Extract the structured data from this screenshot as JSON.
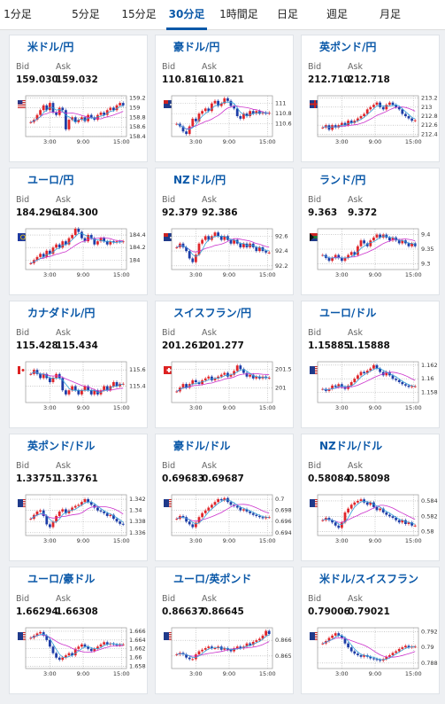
{
  "tabs": [
    {
      "label": "1分足",
      "active": false
    },
    {
      "label": "5分足",
      "active": false
    },
    {
      "label": "15分足",
      "active": false
    },
    {
      "label": "30分足",
      "active": true
    },
    {
      "label": "1時間足",
      "active": false
    },
    {
      "label": "日足",
      "active": false
    },
    {
      "label": "週足",
      "active": false
    },
    {
      "label": "月足",
      "active": false
    }
  ],
  "labels": {
    "bid": "Bid",
    "ask": "Ask"
  },
  "x_ticks": [
    "3:00",
    "9:00",
    "15:00"
  ],
  "colors": {
    "up": "#e0262b",
    "down": "#1e3ea8",
    "ma": "#cc33cc",
    "ma_short": "#33a0d8",
    "link": "#0a58a8"
  },
  "pairs": [
    {
      "name": "米ドル/円",
      "flag": "flag-us",
      "bid": "159.030",
      "ask": "159.032",
      "chart_data": {
        "type": "candlestick",
        "y_ticks": [
          "159.2",
          "159",
          "158.8",
          "158.6",
          "158.4"
        ],
        "ylim": [
          158.4,
          159.25
        ],
        "closes": [
          158.7,
          158.75,
          158.85,
          158.95,
          159.05,
          158.95,
          159.1,
          158.9,
          158.85,
          159.0,
          158.95,
          158.55,
          158.75,
          158.8,
          158.7,
          158.75,
          158.8,
          158.72,
          158.85,
          158.8,
          158.75,
          158.85,
          158.9,
          158.85,
          158.95,
          159.0,
          158.95,
          159.05,
          159.1,
          159.05
        ]
      }
    },
    {
      "name": "豪ドル/円",
      "flag": "flag-au",
      "bid": "110.816",
      "ask": "110.821",
      "chart_data": {
        "type": "candlestick",
        "y_ticks": [
          "111",
          "110.8",
          "110.6"
        ],
        "ylim": [
          110.35,
          111.15
        ],
        "closes": [
          110.6,
          110.55,
          110.45,
          110.4,
          110.55,
          110.7,
          110.65,
          110.8,
          110.85,
          110.9,
          110.85,
          111.0,
          111.05,
          110.95,
          111.0,
          111.1,
          111.05,
          110.95,
          110.9,
          110.75,
          110.7,
          110.8,
          110.75,
          110.85,
          110.8,
          110.85,
          110.8,
          110.82,
          110.8,
          110.82
        ]
      }
    },
    {
      "name": "英ポンド/円",
      "flag": "flag-gb",
      "bid": "212.710",
      "ask": "212.718",
      "chart_data": {
        "type": "candlestick",
        "y_ticks": [
          "213.2",
          "213",
          "212.8",
          "212.6",
          "212.4"
        ],
        "ylim": [
          212.35,
          213.25
        ],
        "closes": [
          212.55,
          212.6,
          212.5,
          212.6,
          212.55,
          212.6,
          212.65,
          212.6,
          212.7,
          212.65,
          212.7,
          212.75,
          212.8,
          212.85,
          212.95,
          213.0,
          213.05,
          213.1,
          213.0,
          212.95,
          213.05,
          213.1,
          213.05,
          213.0,
          212.95,
          212.85,
          212.8,
          212.75,
          212.7,
          212.71
        ]
      }
    },
    {
      "name": "ユーロ/円",
      "flag": "flag-eu",
      "bid": "184.296",
      "ask": "184.300",
      "chart_data": {
        "type": "candlestick",
        "y_ticks": [
          "184.4",
          "184.2",
          "184"
        ],
        "ylim": [
          183.85,
          184.5
        ],
        "closes": [
          183.95,
          184.0,
          184.05,
          184.1,
          184.05,
          184.15,
          184.1,
          184.2,
          184.25,
          184.2,
          184.3,
          184.25,
          184.35,
          184.4,
          184.5,
          184.45,
          184.35,
          184.3,
          184.4,
          184.35,
          184.25,
          184.3,
          184.35,
          184.3,
          184.25,
          184.3,
          184.28,
          184.3,
          184.29,
          184.3
        ]
      }
    },
    {
      "name": "NZドル/円",
      "flag": "flag-nz",
      "bid": "92.379",
      "ask": "92.386",
      "chart_data": {
        "type": "candlestick",
        "y_ticks": [
          "92.6",
          "92.4",
          "92.2"
        ],
        "ylim": [
          92.15,
          92.7
        ],
        "closes": [
          92.45,
          92.5,
          92.45,
          92.4,
          92.3,
          92.25,
          92.35,
          92.5,
          92.55,
          92.6,
          92.55,
          92.6,
          92.65,
          92.6,
          92.55,
          92.6,
          92.55,
          92.5,
          92.55,
          92.5,
          92.45,
          92.5,
          92.45,
          92.5,
          92.45,
          92.4,
          92.45,
          92.4,
          92.38,
          92.38
        ]
      }
    },
    {
      "name": "ランド/円",
      "flag": "flag-za",
      "bid": "9.363",
      "ask": "9.372",
      "chart_data": {
        "type": "candlestick",
        "y_ticks": [
          "9.4",
          "9.35",
          "9.3"
        ],
        "ylim": [
          9.28,
          9.42
        ],
        "closes": [
          9.33,
          9.32,
          9.31,
          9.32,
          9.33,
          9.32,
          9.31,
          9.32,
          9.33,
          9.34,
          9.33,
          9.36,
          9.38,
          9.37,
          9.36,
          9.38,
          9.39,
          9.4,
          9.39,
          9.4,
          9.39,
          9.38,
          9.39,
          9.38,
          9.37,
          9.38,
          9.37,
          9.36,
          9.37,
          9.36
        ]
      }
    },
    {
      "name": "カナダドル/円",
      "flag": "flag-ca",
      "bid": "115.428",
      "ask": "115.434",
      "chart_data": {
        "type": "candlestick",
        "y_ticks": [
          "115.6",
          "115.4"
        ],
        "ylim": [
          115.2,
          115.7
        ],
        "closes": [
          115.55,
          115.6,
          115.55,
          115.5,
          115.55,
          115.5,
          115.45,
          115.5,
          115.55,
          115.5,
          115.35,
          115.3,
          115.35,
          115.4,
          115.35,
          115.3,
          115.35,
          115.4,
          115.35,
          115.3,
          115.35,
          115.3,
          115.35,
          115.4,
          115.35,
          115.4,
          115.45,
          115.4,
          115.43,
          115.43
        ]
      }
    },
    {
      "name": "スイスフラン/円",
      "flag": "flag-ch",
      "bid": "201.261",
      "ask": "201.277",
      "chart_data": {
        "type": "candlestick",
        "y_ticks": [
          "201.5",
          "201"
        ],
        "ylim": [
          200.6,
          201.7
        ],
        "closes": [
          200.9,
          201.0,
          201.1,
          201.0,
          201.1,
          201.2,
          201.15,
          201.1,
          201.2,
          201.25,
          201.3,
          201.2,
          201.25,
          201.3,
          201.35,
          201.4,
          201.3,
          201.35,
          201.45,
          201.6,
          201.5,
          201.4,
          201.3,
          201.35,
          201.25,
          201.3,
          201.25,
          201.3,
          201.26,
          201.27
        ]
      }
    },
    {
      "name": "ユーロ/ドル",
      "flag": "flag-eu-us",
      "bid": "1.15885",
      "ask": "1.15888",
      "chart_data": {
        "type": "candlestick",
        "y_ticks": [
          "1.162",
          "1.16",
          "1.158"
        ],
        "ylim": [
          1.1565,
          1.1625
        ],
        "closes": [
          1.1585,
          1.1582,
          1.1585,
          1.159,
          1.1588,
          1.1592,
          1.1588,
          1.1585,
          1.159,
          1.1595,
          1.16,
          1.1605,
          1.161,
          1.1608,
          1.1612,
          1.1615,
          1.162,
          1.1615,
          1.161,
          1.1605,
          1.161,
          1.1605,
          1.16,
          1.1598,
          1.1595,
          1.1592,
          1.159,
          1.1588,
          1.1589,
          1.1589
        ]
      }
    },
    {
      "name": "英ポンド/ドル",
      "flag": "flag-gb-us",
      "bid": "1.33751",
      "ask": "1.33761",
      "chart_data": {
        "type": "candlestick",
        "y_ticks": [
          "1.342",
          "1.34",
          "1.338",
          "1.336"
        ],
        "ylim": [
          1.3355,
          1.3428
        ],
        "closes": [
          1.3385,
          1.3392,
          1.3398,
          1.34,
          1.339,
          1.3375,
          1.337,
          1.338,
          1.339,
          1.3398,
          1.3402,
          1.3395,
          1.34,
          1.3405,
          1.3408,
          1.341,
          1.3415,
          1.342,
          1.3415,
          1.341,
          1.3405,
          1.34,
          1.3398,
          1.3395,
          1.339,
          1.3392,
          1.3385,
          1.338,
          1.3376,
          1.3375
        ]
      }
    },
    {
      "name": "豪ドル/ドル",
      "flag": "flag-au-us",
      "bid": "0.69683",
      "ask": "0.69687",
      "chart_data": {
        "type": "candlestick",
        "y_ticks": [
          "0.7",
          "0.698",
          "0.696",
          "0.694"
        ],
        "ylim": [
          0.6935,
          0.7008
        ],
        "closes": [
          0.6965,
          0.697,
          0.6968,
          0.696,
          0.6955,
          0.695,
          0.6958,
          0.6968,
          0.6975,
          0.698,
          0.6985,
          0.699,
          0.6995,
          0.7,
          0.6998,
          0.7002,
          0.6995,
          0.699,
          0.6988,
          0.6985,
          0.698,
          0.6982,
          0.6978,
          0.6975,
          0.6972,
          0.697,
          0.6968,
          0.6966,
          0.6968,
          0.6968
        ]
      }
    },
    {
      "name": "NZドル/ドル",
      "flag": "flag-nz-us",
      "bid": "0.58084",
      "ask": "0.58098",
      "chart_data": {
        "type": "candlestick",
        "y_ticks": [
          "0.584",
          "0.582",
          "0.58"
        ],
        "ylim": [
          0.5795,
          0.5848
        ],
        "closes": [
          0.5815,
          0.5818,
          0.5815,
          0.5812,
          0.5808,
          0.5805,
          0.5812,
          0.5825,
          0.583,
          0.5835,
          0.5838,
          0.584,
          0.5842,
          0.5838,
          0.5835,
          0.5838,
          0.5832,
          0.5828,
          0.583,
          0.5825,
          0.5822,
          0.582,
          0.5818,
          0.5815,
          0.5812,
          0.5815,
          0.581,
          0.5812,
          0.5808,
          0.5808
        ]
      }
    },
    {
      "name": "ユーロ/豪ドル",
      "flag": "flag-eu-au",
      "bid": "1.66294",
      "ask": "1.66308",
      "chart_data": {
        "type": "candlestick",
        "y_ticks": [
          "1.666",
          "1.664",
          "1.662",
          "1.66",
          "1.658"
        ],
        "ylim": [
          1.6575,
          1.6668
        ],
        "closes": [
          1.6645,
          1.665,
          1.6655,
          1.6658,
          1.665,
          1.664,
          1.6625,
          1.661,
          1.66,
          1.6595,
          1.66,
          1.6605,
          1.661,
          1.6605,
          1.662,
          1.6625,
          1.663,
          1.6625,
          1.662,
          1.6615,
          1.662,
          1.6625,
          1.663,
          1.6635,
          1.663,
          1.6632,
          1.663,
          1.6628,
          1.663,
          1.663
        ]
      }
    },
    {
      "name": "ユーロ/英ポンド",
      "flag": "flag-eu-gb",
      "bid": "0.86637",
      "ask": "0.86645",
      "chart_data": {
        "type": "candlestick",
        "y_ticks": [
          "0.866",
          "0.865"
        ],
        "ylim": [
          0.8642,
          0.8668
        ],
        "closes": [
          0.8651,
          0.8652,
          0.8651,
          0.8649,
          0.8648,
          0.8648,
          0.8651,
          0.8653,
          0.8654,
          0.8655,
          0.8656,
          0.8655,
          0.8655,
          0.8656,
          0.8654,
          0.8655,
          0.8654,
          0.8653,
          0.8655,
          0.8656,
          0.8655,
          0.8656,
          0.8658,
          0.8657,
          0.8659,
          0.866,
          0.8661,
          0.8663,
          0.8666,
          0.8664
        ]
      }
    },
    {
      "name": "米ドル/スイスフラン",
      "flag": "flag-us-ch",
      "bid": "0.79006",
      "ask": "0.79021",
      "chart_data": {
        "type": "candlestick",
        "y_ticks": [
          "0.792",
          "0.79",
          "0.788"
        ],
        "ylim": [
          0.7873,
          0.7925
        ],
        "closes": [
          0.7905,
          0.7908,
          0.7912,
          0.7915,
          0.7918,
          0.7915,
          0.7912,
          0.7905,
          0.79,
          0.7895,
          0.7892,
          0.789,
          0.7888,
          0.789,
          0.7888,
          0.7886,
          0.7885,
          0.7884,
          0.7883,
          0.7885,
          0.7888,
          0.789,
          0.7893,
          0.7895,
          0.7898,
          0.79,
          0.7902,
          0.79,
          0.7901,
          0.7901
        ]
      }
    }
  ]
}
